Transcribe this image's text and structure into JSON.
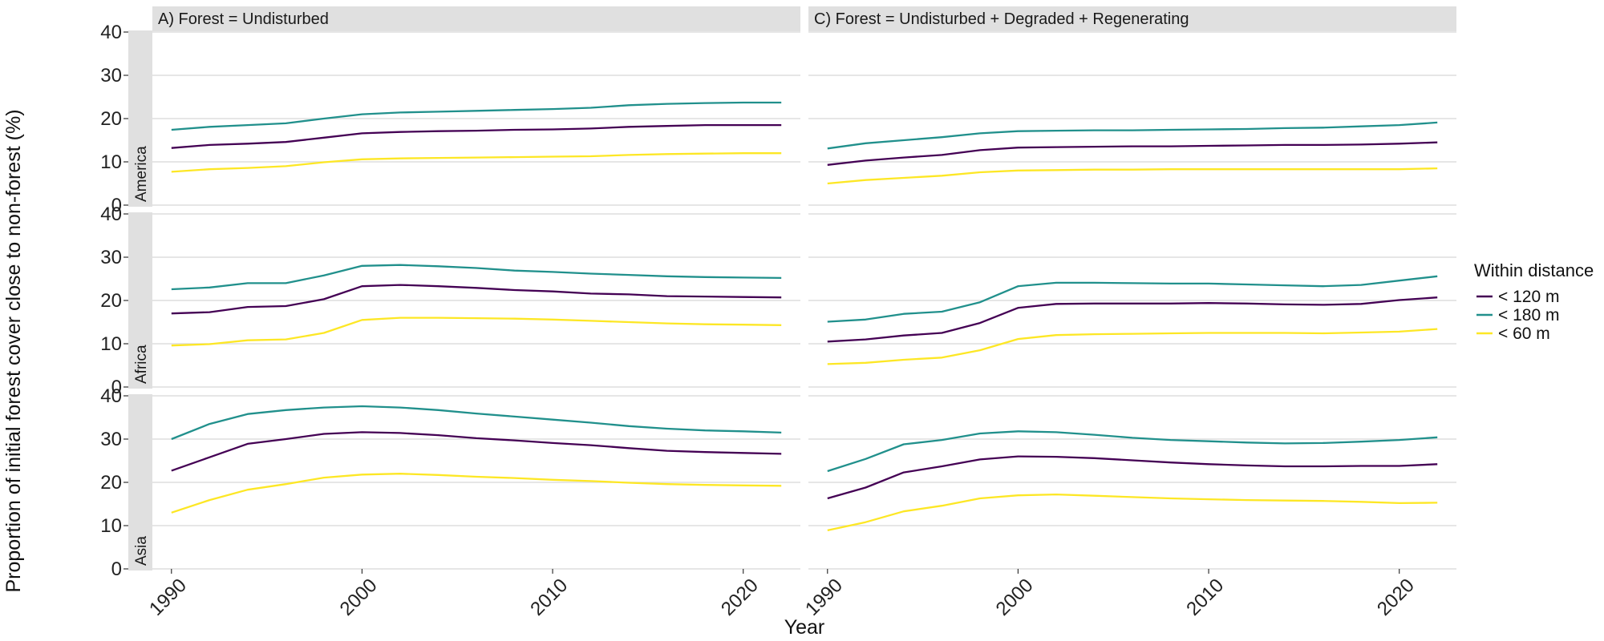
{
  "chart_data": {
    "type": "line",
    "xlabel": "Year",
    "ylabel": "Proportion of initial forest cover close to non-forest (%)",
    "xlim": [
      1989,
      2023
    ],
    "ylim": [
      0,
      40
    ],
    "x_ticks": [
      1990,
      2000,
      2010,
      2020
    ],
    "y_ticks": [
      0,
      10,
      20,
      30,
      40
    ],
    "grid": true,
    "legend": {
      "title": "Within distance",
      "position": "right",
      "entries": [
        {
          "name": "< 120 m",
          "color": "#440154"
        },
        {
          "name": "< 180 m",
          "color": "#21908C"
        },
        {
          "name": "< 60 m",
          "color": "#FDE725"
        }
      ]
    },
    "columns": [
      "A) Forest = Undisturbed",
      "C) Forest = Undisturbed + Degraded + Regenerating"
    ],
    "rows": [
      "America",
      "Africa",
      "Asia"
    ],
    "x": [
      1990,
      1992,
      1994,
      1996,
      1998,
      2000,
      2002,
      2004,
      2006,
      2008,
      2010,
      2012,
      2014,
      2016,
      2018,
      2020,
      2022
    ],
    "panels": [
      {
        "column": 0,
        "row": 0,
        "series": [
          {
            "name": "< 120 m",
            "values": [
              13.2,
              13.9,
              14.2,
              14.6,
              15.6,
              16.6,
              16.9,
              17.1,
              17.2,
              17.4,
              17.5,
              17.7,
              18.1,
              18.3,
              18.5,
              18.5,
              18.5
            ]
          },
          {
            "name": "< 180 m",
            "values": [
              17.4,
              18.1,
              18.5,
              18.9,
              20.0,
              21.0,
              21.4,
              21.6,
              21.8,
              22.0,
              22.2,
              22.5,
              23.1,
              23.4,
              23.6,
              23.7,
              23.7
            ]
          },
          {
            "name": "< 60 m",
            "values": [
              7.7,
              8.3,
              8.6,
              9.0,
              9.9,
              10.6,
              10.8,
              10.9,
              11.0,
              11.1,
              11.2,
              11.3,
              11.6,
              11.8,
              11.9,
              12.0,
              12.0
            ]
          }
        ]
      },
      {
        "column": 1,
        "row": 0,
        "series": [
          {
            "name": "< 120 m",
            "values": [
              9.3,
              10.3,
              11.0,
              11.6,
              12.7,
              13.3,
              13.4,
              13.5,
              13.6,
              13.6,
              13.7,
              13.8,
              13.9,
              13.9,
              14.0,
              14.2,
              14.5
            ]
          },
          {
            "name": "< 180 m",
            "values": [
              13.1,
              14.3,
              15.0,
              15.7,
              16.6,
              17.1,
              17.2,
              17.3,
              17.3,
              17.4,
              17.5,
              17.6,
              17.8,
              17.9,
              18.2,
              18.5,
              19.1
            ]
          },
          {
            "name": "< 60 m",
            "values": [
              5.0,
              5.8,
              6.3,
              6.8,
              7.6,
              8.0,
              8.1,
              8.2,
              8.2,
              8.3,
              8.3,
              8.3,
              8.3,
              8.3,
              8.3,
              8.3,
              8.5
            ]
          }
        ]
      },
      {
        "column": 0,
        "row": 1,
        "series": [
          {
            "name": "< 120 m",
            "values": [
              17.0,
              17.3,
              18.5,
              18.7,
              20.3,
              23.3,
              23.6,
              23.3,
              22.9,
              22.4,
              22.1,
              21.6,
              21.4,
              21.0,
              20.9,
              20.8,
              20.7
            ]
          },
          {
            "name": "< 180 m",
            "values": [
              22.6,
              23.0,
              24.0,
              24.0,
              25.8,
              28.0,
              28.2,
              27.9,
              27.5,
              26.9,
              26.6,
              26.2,
              25.9,
              25.6,
              25.4,
              25.3,
              25.2
            ]
          },
          {
            "name": "< 60 m",
            "values": [
              9.6,
              9.9,
              10.8,
              11.0,
              12.5,
              15.5,
              16.0,
              16.0,
              15.9,
              15.8,
              15.6,
              15.3,
              15.0,
              14.7,
              14.5,
              14.4,
              14.3
            ]
          }
        ]
      },
      {
        "column": 1,
        "row": 1,
        "series": [
          {
            "name": "< 120 m",
            "values": [
              10.5,
              11.0,
              11.9,
              12.5,
              14.8,
              18.3,
              19.2,
              19.3,
              19.3,
              19.3,
              19.4,
              19.3,
              19.1,
              19.0,
              19.2,
              20.1,
              20.7
            ]
          },
          {
            "name": "< 180 m",
            "values": [
              15.1,
              15.6,
              16.9,
              17.4,
              19.6,
              23.3,
              24.1,
              24.1,
              24.0,
              23.9,
              23.9,
              23.7,
              23.5,
              23.3,
              23.6,
              24.6,
              25.6
            ]
          },
          {
            "name": "< 60 m",
            "values": [
              5.3,
              5.6,
              6.3,
              6.8,
              8.5,
              11.1,
              12.0,
              12.2,
              12.3,
              12.4,
              12.5,
              12.5,
              12.5,
              12.4,
              12.6,
              12.8,
              13.4
            ]
          }
        ]
      },
      {
        "column": 0,
        "row": 2,
        "series": [
          {
            "name": "< 120 m",
            "values": [
              22.7,
              25.8,
              28.9,
              30.0,
              31.2,
              31.6,
              31.4,
              30.9,
              30.2,
              29.7,
              29.1,
              28.6,
              27.9,
              27.3,
              27.0,
              26.8,
              26.6
            ]
          },
          {
            "name": "< 180 m",
            "values": [
              30.0,
              33.5,
              35.8,
              36.7,
              37.3,
              37.6,
              37.3,
              36.7,
              35.9,
              35.2,
              34.5,
              33.8,
              33.0,
              32.4,
              32.0,
              31.8,
              31.5
            ]
          },
          {
            "name": "< 60 m",
            "values": [
              13.0,
              15.9,
              18.3,
              19.6,
              21.1,
              21.8,
              22.0,
              21.7,
              21.3,
              21.0,
              20.6,
              20.3,
              19.9,
              19.6,
              19.4,
              19.3,
              19.2
            ]
          }
        ]
      },
      {
        "column": 1,
        "row": 2,
        "series": [
          {
            "name": "< 120 m",
            "values": [
              16.3,
              18.8,
              22.3,
              23.7,
              25.3,
              26.0,
              25.9,
              25.6,
              25.1,
              24.6,
              24.2,
              23.9,
              23.7,
              23.7,
              23.8,
              23.8,
              24.2
            ]
          },
          {
            "name": "< 180 m",
            "values": [
              22.6,
              25.4,
              28.8,
              29.8,
              31.3,
              31.8,
              31.6,
              31.0,
              30.3,
              29.8,
              29.5,
              29.2,
              29.0,
              29.1,
              29.4,
              29.8,
              30.4
            ]
          },
          {
            "name": "< 60 m",
            "values": [
              8.9,
              10.8,
              13.3,
              14.6,
              16.3,
              17.0,
              17.2,
              16.9,
              16.6,
              16.3,
              16.1,
              15.9,
              15.8,
              15.7,
              15.5,
              15.2,
              15.3
            ]
          }
        ]
      }
    ]
  }
}
